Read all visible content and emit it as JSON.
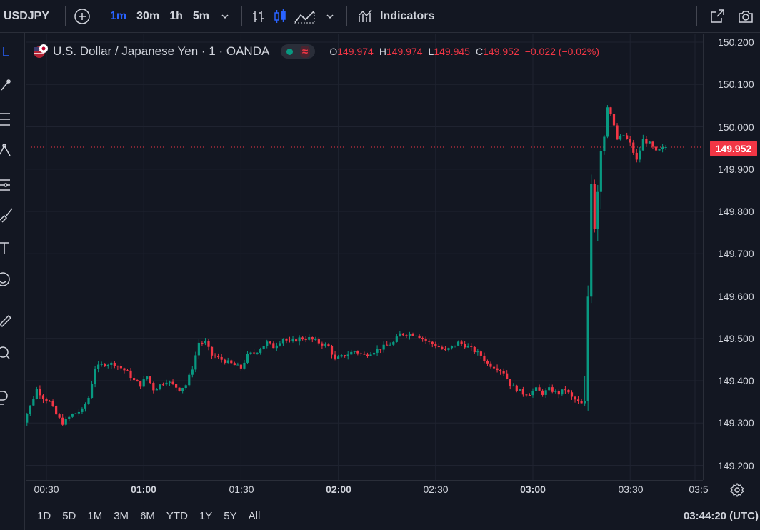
{
  "toolbar": {
    "symbol": "USDJPY",
    "timeframes": [
      "1m",
      "30m",
      "1h",
      "5m"
    ],
    "active_timeframe": "1m",
    "indicators_label": "Indicators"
  },
  "legend": {
    "title": "U.S. Dollar / Japanese Yen · 1 · OANDA",
    "ohlc": [
      {
        "k": "O",
        "v": "149.974"
      },
      {
        "k": "H",
        "v": "149.974"
      },
      {
        "k": "L",
        "v": "149.945"
      },
      {
        "k": "C",
        "v": "149.952"
      }
    ],
    "change": "−0.022 (−0.02%)"
  },
  "price_axis": {
    "labels": [
      "150.200",
      "150.100",
      "150.000",
      "149.900",
      "149.800",
      "149.700",
      "149.600",
      "149.500",
      "149.400",
      "149.300",
      "149.200"
    ],
    "last_price": "149.952"
  },
  "time_axis": {
    "labels": [
      {
        "t": "00:30",
        "bold": false
      },
      {
        "t": "01:00",
        "bold": true
      },
      {
        "t": "01:30",
        "bold": false
      },
      {
        "t": "02:00",
        "bold": true
      },
      {
        "t": "02:30",
        "bold": false
      },
      {
        "t": "03:00",
        "bold": true
      },
      {
        "t": "03:30",
        "bold": false
      },
      {
        "t": "03:5",
        "bold": false
      }
    ]
  },
  "ranges": [
    "1D",
    "5D",
    "1M",
    "3M",
    "6M",
    "YTD",
    "1Y",
    "5Y",
    "All"
  ],
  "clock": "03:44:20 (UTC)",
  "colors": {
    "up": "#089981",
    "down": "#f23645",
    "bg": "#131722",
    "accent": "#2962ff"
  },
  "chart_data": {
    "type": "candlestick",
    "ylim": [
      149.2,
      150.2
    ],
    "x_start": "00:21",
    "x_end": "03:41",
    "interval_minutes": 1,
    "path": [
      [
        "00:21",
        149.27
      ],
      [
        "00:25",
        149.34
      ],
      [
        "00:27",
        149.38
      ],
      [
        "00:29",
        149.36
      ],
      [
        "00:31",
        149.35
      ],
      [
        "00:33",
        149.32
      ],
      [
        "00:35",
        149.3
      ],
      [
        "00:38",
        149.32
      ],
      [
        "00:41",
        149.33
      ],
      [
        "00:43",
        149.36
      ],
      [
        "00:45",
        149.43
      ],
      [
        "00:48",
        149.44
      ],
      [
        "00:51",
        149.44
      ],
      [
        "00:53",
        149.43
      ],
      [
        "00:55",
        149.42
      ],
      [
        "00:57",
        149.4
      ],
      [
        "00:59",
        149.39
      ],
      [
        "01:01",
        149.41
      ],
      [
        "01:03",
        149.38
      ],
      [
        "01:05",
        149.39
      ],
      [
        "01:07",
        149.4
      ],
      [
        "01:09",
        149.39
      ],
      [
        "01:11",
        149.38
      ],
      [
        "01:13",
        149.39
      ],
      [
        "01:15",
        149.43
      ],
      [
        "01:17",
        149.49
      ],
      [
        "01:19",
        149.49
      ],
      [
        "01:21",
        149.46
      ],
      [
        "01:24",
        149.45
      ],
      [
        "01:27",
        149.44
      ],
      [
        "01:30",
        149.43
      ],
      [
        "01:32",
        149.46
      ],
      [
        "01:35",
        149.47
      ],
      [
        "01:38",
        149.49
      ],
      [
        "01:40",
        149.48
      ],
      [
        "01:43",
        149.5
      ],
      [
        "01:45",
        149.49
      ],
      [
        "01:48",
        149.5
      ],
      [
        "01:51",
        149.5
      ],
      [
        "01:54",
        149.49
      ],
      [
        "01:57",
        149.48
      ],
      [
        "01:59",
        149.45
      ],
      [
        "02:02",
        149.46
      ],
      [
        "02:05",
        149.47
      ],
      [
        "02:08",
        149.46
      ],
      [
        "02:11",
        149.47
      ],
      [
        "02:14",
        149.48
      ],
      [
        "02:17",
        149.49
      ],
      [
        "02:19",
        149.51
      ],
      [
        "02:21",
        149.51
      ],
      [
        "02:24",
        149.51
      ],
      [
        "02:26",
        149.5
      ],
      [
        "02:28",
        149.49
      ],
      [
        "02:31",
        149.48
      ],
      [
        "02:33",
        149.47
      ],
      [
        "02:35",
        149.48
      ],
      [
        "02:37",
        149.49
      ],
      [
        "02:40",
        149.48
      ],
      [
        "02:42",
        149.47
      ],
      [
        "02:44",
        149.46
      ],
      [
        "02:46",
        149.44
      ],
      [
        "02:49",
        149.43
      ],
      [
        "02:51",
        149.42
      ],
      [
        "02:53",
        149.39
      ],
      [
        "02:55",
        149.38
      ],
      [
        "02:57",
        149.37
      ],
      [
        "02:59",
        149.37
      ],
      [
        "03:01",
        149.38
      ],
      [
        "03:03",
        149.37
      ],
      [
        "03:05",
        149.38
      ],
      [
        "03:08",
        149.37
      ],
      [
        "03:10",
        149.38
      ],
      [
        "03:12",
        149.36
      ],
      [
        "03:14",
        149.35
      ],
      [
        "03:16",
        149.34
      ],
      [
        "03:17",
        149.6
      ],
      [
        "03:18",
        149.88
      ],
      [
        "03:19",
        149.77
      ],
      [
        "03:21",
        149.95
      ],
      [
        "03:22",
        149.99
      ],
      [
        "03:23",
        150.05
      ],
      [
        "03:24",
        150.03
      ],
      [
        "03:26",
        149.97
      ],
      [
        "03:28",
        149.98
      ],
      [
        "03:30",
        149.96
      ],
      [
        "03:32",
        149.92
      ],
      [
        "03:34",
        149.97
      ],
      [
        "03:36",
        149.96
      ],
      [
        "03:38",
        149.94
      ],
      [
        "03:41",
        149.952
      ]
    ],
    "last_price": 149.952
  }
}
